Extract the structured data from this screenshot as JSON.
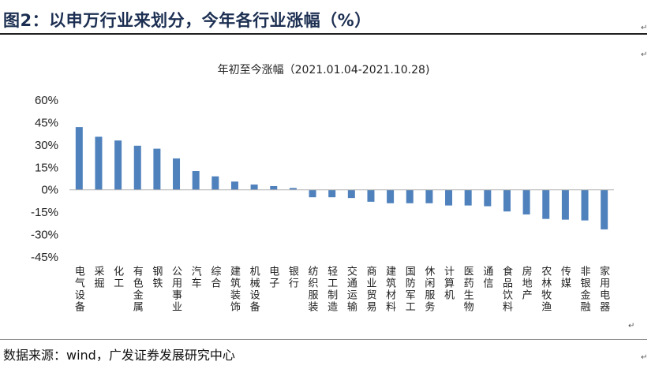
{
  "header": {
    "title": "图2：以申万行业来划分，今年各行业涨幅（%）"
  },
  "footer": {
    "source": "数据来源：wind，广发证券发展研究中心"
  },
  "paragraph_mark": "↵",
  "chart_data": {
    "type": "bar",
    "title": "年初至今涨幅（2021.01.04-2021.10.28)",
    "xlabel": "",
    "ylabel": "",
    "ylim": [
      -0.45,
      0.6
    ],
    "yticks": [
      0.6,
      0.45,
      0.3,
      0.15,
      0.0,
      -0.15,
      -0.3,
      -0.45
    ],
    "ytick_labels": [
      "60%",
      "45%",
      "30%",
      "15%",
      "0%",
      "-15%",
      "-30%",
      "-45%"
    ],
    "grid": false,
    "legend": false,
    "bar_color": "#4f81bd",
    "categories": [
      "电气设备",
      "采掘",
      "化工",
      "有色金属",
      "钢铁",
      "公用事业",
      "汽车",
      "综合",
      "建筑装饰",
      "机械设备",
      "电子",
      "银行",
      "纺织服装",
      "轻工制造",
      "交通运输",
      "商业贸易",
      "建筑材料",
      "国防军工",
      "休闲服务",
      "计算机",
      "医药生物",
      "通信",
      "食品饮料",
      "房地产",
      "农林牧渔",
      "传媒",
      "非银金融",
      "家用电器"
    ],
    "values": [
      0.42,
      0.355,
      0.33,
      0.295,
      0.275,
      0.21,
      0.125,
      0.09,
      0.055,
      0.035,
      0.025,
      0.012,
      -0.05,
      -0.05,
      -0.055,
      -0.08,
      -0.09,
      -0.09,
      -0.09,
      -0.105,
      -0.105,
      -0.11,
      -0.145,
      -0.165,
      -0.195,
      -0.2,
      -0.205,
      -0.265
    ]
  }
}
